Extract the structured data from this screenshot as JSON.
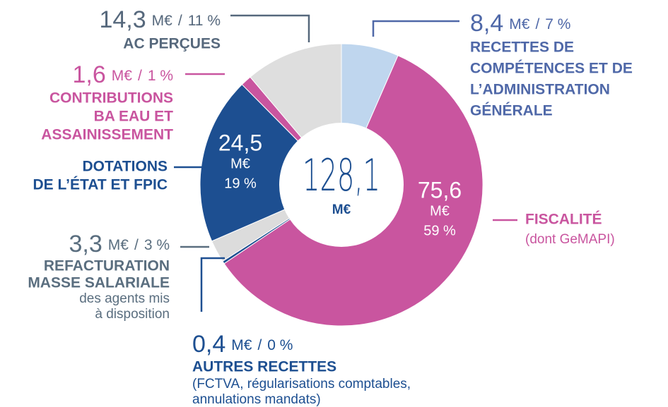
{
  "chart_data": {
    "type": "donut",
    "unit": "M€",
    "separator": "/",
    "center_label": "128,1",
    "categories": [
      [
        "RECETTES DE",
        "COMPÉTENCES ET DE",
        "L’ADMINISTRATION",
        "GÉNÉRALE"
      ],
      [
        "FISCALITÉ"
      ],
      [
        "AUTRES RECETTES"
      ],
      [
        "REFACTURATION",
        "MASSE SALARIALE"
      ],
      [
        "DOTATIONS",
        "DE L’ÉTAT ET FPIC"
      ],
      [
        "CONTRIBUTIONS",
        "BA EAU ET",
        "ASSAINISSEMENT"
      ],
      [
        "AC PERÇUES"
      ]
    ],
    "notes": [
      [],
      [
        "(dont GeMAPI)"
      ],
      [
        "(FCTVA, régularisations comptables,",
        "annulations mandats)"
      ],
      [
        "des agents mis",
        "à disposition"
      ],
      [],
      [],
      []
    ],
    "values": [
      8.4,
      75.6,
      0.4,
      3.3,
      24.5,
      1.6,
      14.3
    ],
    "value_labels": [
      "8,4",
      "75,6",
      "0,4",
      "3,3",
      "24,5",
      "1,6",
      "14,3"
    ],
    "percent_labels": [
      "7 %",
      "59 %",
      "0 %",
      "3 %",
      "19 %",
      "1 %",
      "11 %"
    ],
    "colors": [
      "#bfd6ee",
      "#c9559f",
      "#1d4f91",
      "#dcdcdc",
      "#1d4f91",
      "#c9559f",
      "#dedede"
    ],
    "label_colors": [
      "#4f68a8",
      "#c9559f",
      "#1d4f91",
      "#5a6e7f",
      "#1d4f91",
      "#c9559f",
      "#56687c"
    ]
  }
}
